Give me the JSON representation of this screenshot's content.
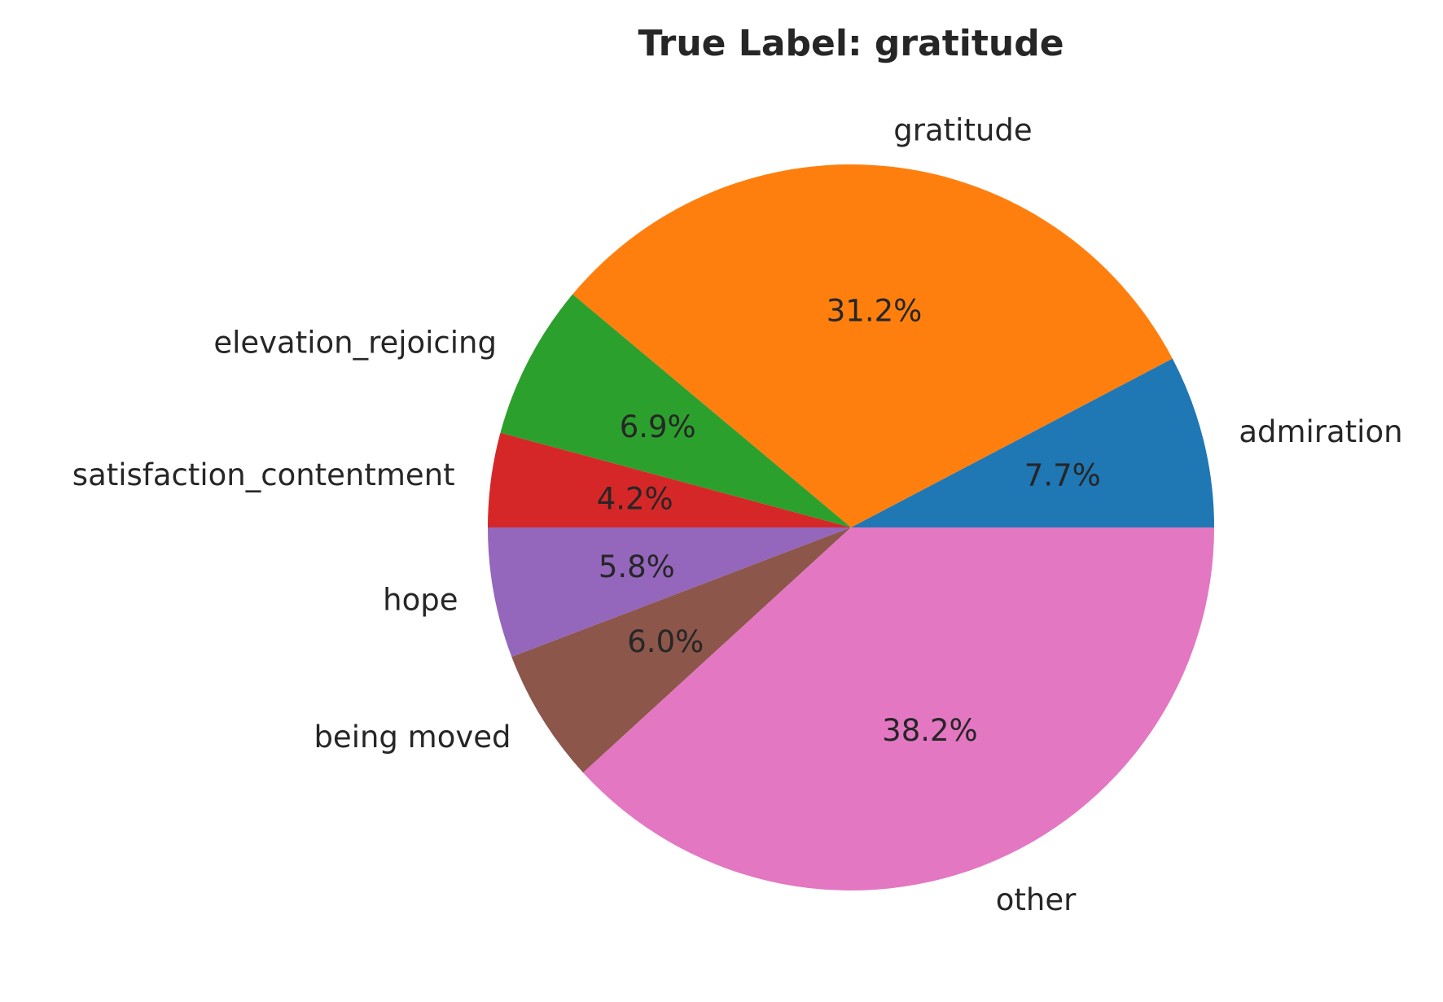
{
  "chart_data": {
    "type": "pie",
    "title": "True Label: gratitude",
    "start_angle_deg": 0,
    "direction": "counterclockwise",
    "slices": [
      {
        "label": "admiration",
        "value": 7.7,
        "pct_label": "7.7%",
        "color": "#1f77b4"
      },
      {
        "label": "gratitude",
        "value": 31.2,
        "pct_label": "31.2%",
        "color": "#ff7f0e"
      },
      {
        "label": "elevation_rejoicing",
        "value": 6.9,
        "pct_label": "6.9%",
        "color": "#2ca02c"
      },
      {
        "label": "satisfaction_contentment",
        "value": 4.2,
        "pct_label": "4.2%",
        "color": "#d62728"
      },
      {
        "label": "hope",
        "value": 5.8,
        "pct_label": "5.8%",
        "color": "#9467bd"
      },
      {
        "label": "being moved",
        "value": 6.0,
        "pct_label": "6.0%",
        "color": "#8c564b"
      },
      {
        "label": "other",
        "value": 38.2,
        "pct_label": "38.2%",
        "color": "#e377c2"
      }
    ]
  }
}
